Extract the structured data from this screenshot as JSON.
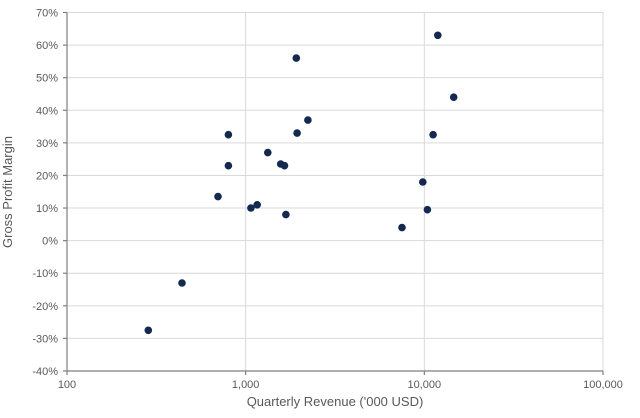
{
  "colors": {
    "background": "#ffffff",
    "dot": "#122A52",
    "gridline": "#D9D9D9",
    "axis_line": "#7F7F7F",
    "tick_label": "#595959",
    "axis_title": "#595959"
  },
  "chart_data": {
    "type": "scatter",
    "title": "",
    "xlabel": "Quarterly Revenue ('000 USD)",
    "ylabel": "Gross Profit Margin",
    "x_scale": "log",
    "xlim": [
      100,
      100000
    ],
    "ylim": [
      -40,
      70
    ],
    "x_ticks": [
      100,
      1000,
      10000,
      100000
    ],
    "x_tick_labels": [
      "100",
      "1,000",
      "10,000",
      "100,000"
    ],
    "y_ticks": [
      70,
      60,
      50,
      40,
      30,
      20,
      10,
      0,
      -10,
      -20,
      -30,
      -40
    ],
    "y_tick_labels": [
      "70%",
      "60%",
      "50%",
      "40%",
      "30%",
      "20%",
      "10%",
      "0%",
      "-10%",
      "-20%",
      "-30%",
      "-40%"
    ],
    "grid": "on",
    "legend": "none",
    "marker_radius": 3.8,
    "points": [
      {
        "x": 285,
        "y": -27.5
      },
      {
        "x": 440,
        "y": -13
      },
      {
        "x": 700,
        "y": 13.5
      },
      {
        "x": 800,
        "y": 32.5
      },
      {
        "x": 800,
        "y": 23
      },
      {
        "x": 1070,
        "y": 10
      },
      {
        "x": 1160,
        "y": 11
      },
      {
        "x": 1330,
        "y": 27
      },
      {
        "x": 1570,
        "y": 23.5
      },
      {
        "x": 1650,
        "y": 23
      },
      {
        "x": 1680,
        "y": 8
      },
      {
        "x": 1920,
        "y": 56
      },
      {
        "x": 1940,
        "y": 33
      },
      {
        "x": 2230,
        "y": 37
      },
      {
        "x": 7500,
        "y": 4
      },
      {
        "x": 9800,
        "y": 18
      },
      {
        "x": 10400,
        "y": 9.5
      },
      {
        "x": 11200,
        "y": 32.5
      },
      {
        "x": 11900,
        "y": 63
      },
      {
        "x": 14600,
        "y": 44
      }
    ]
  }
}
